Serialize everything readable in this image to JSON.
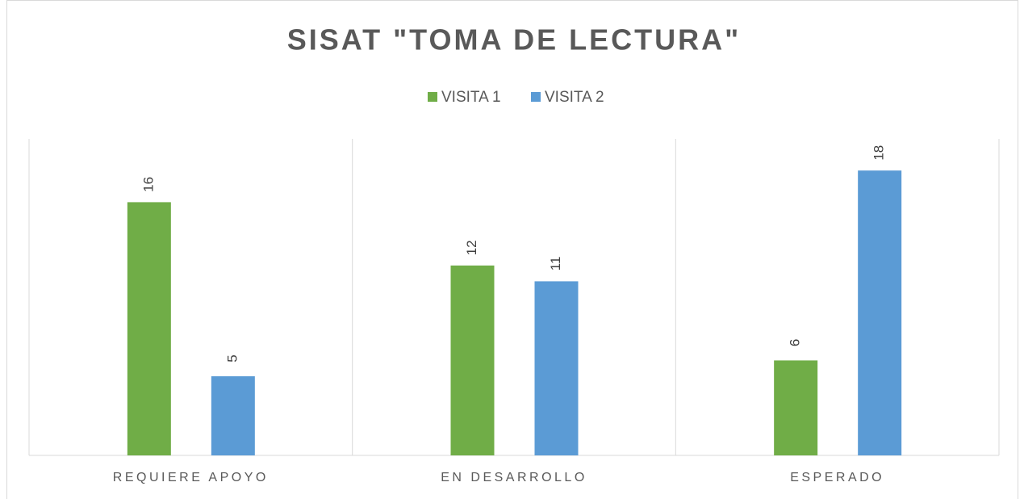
{
  "chart_data": {
    "type": "bar",
    "title": "SISAT \"TOMA DE LECTURA\"",
    "categories": [
      "REQUIERE APOYO",
      "EN DESARROLLO",
      "ESPERADO"
    ],
    "series": [
      {
        "name": "VISITA 1",
        "color": "#70ad47",
        "values": [
          16,
          12,
          6
        ]
      },
      {
        "name": "VISITA 2",
        "color": "#5b9bd5",
        "values": [
          5,
          11,
          18
        ]
      }
    ],
    "ylim": [
      0,
      20
    ],
    "legend": "top"
  }
}
